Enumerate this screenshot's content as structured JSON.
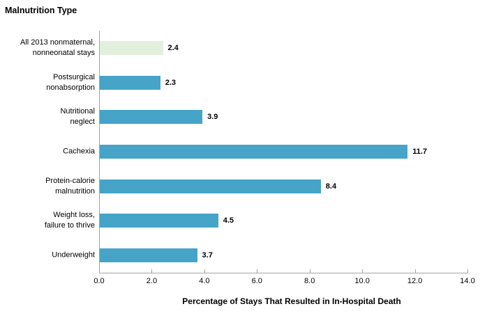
{
  "chart_data": {
    "type": "bar",
    "orientation": "horizontal",
    "title": "Malnutrition Type",
    "xlabel": "Percentage of Stays That Resulted in In-Hospital Death",
    "categories": [
      "All 2013 nonmaternal,\nnonneonatal stays",
      "Postsurgical\nnonabsorption",
      "Nutritional\nneglect",
      "Cachexia",
      "Protein-calorie\nmalnutrition",
      "Weight loss,\nfailure to thrive",
      "Underweight"
    ],
    "values": [
      2.4,
      2.3,
      3.9,
      11.7,
      8.4,
      4.5,
      3.7
    ],
    "value_labels": [
      "2.4",
      "2.3",
      "3.9",
      "11.7",
      "8.4",
      "4.5",
      "3.7"
    ],
    "xlim": [
      0,
      14
    ],
    "xticks": [
      "0.0",
      "2.0",
      "4.0",
      "6.0",
      "8.0",
      "10.0",
      "12.0",
      "14.0"
    ],
    "grid": false,
    "legend": null,
    "highlight_index": 0,
    "colors": {
      "default_bar": "#45a4c8",
      "highlight_bar": "#e3f0dd",
      "axis": "#a3a3a3",
      "text": "#000000"
    }
  }
}
